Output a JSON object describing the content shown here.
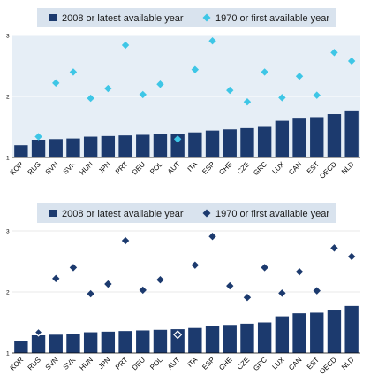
{
  "chart_data": [
    {
      "type": "bar",
      "title": "",
      "xlabel": "",
      "ylabel": "",
      "ylim": [
        1,
        3
      ],
      "yticks": [
        "1",
        "2",
        "3"
      ],
      "grid": true,
      "legend_position": "top",
      "categories": [
        "KOR",
        "RUS",
        "SVN",
        "SVK",
        "HUN",
        "JPN",
        "PRT",
        "DEU",
        "POL",
        "AUT",
        "ITA",
        "ESP",
        "CHE",
        "CZE",
        "GRC",
        "LUX",
        "CAN",
        "EST",
        "OECD",
        "NLD"
      ],
      "series": [
        {
          "name": "2008 or latest available year",
          "kind": "bar",
          "values": [
            1.2,
            1.29,
            1.3,
            1.31,
            1.34,
            1.35,
            1.36,
            1.37,
            1.38,
            1.39,
            1.41,
            1.44,
            1.46,
            1.48,
            1.5,
            1.6,
            1.65,
            1.66,
            1.71,
            1.77
          ]
        },
        {
          "name": "1970 or first available year",
          "kind": "marker",
          "values": [
            null,
            1.34,
            2.22,
            2.4,
            1.97,
            2.13,
            2.84,
            2.03,
            2.2,
            1.3,
            2.44,
            2.91,
            2.1,
            1.91,
            2.4,
            1.98,
            2.33,
            2.02,
            2.72,
            2.58
          ]
        }
      ],
      "colors": {
        "bar": "#1c3a6e",
        "marker": "#3ec6e6",
        "plot_bg": "#e6eef6",
        "grid": "#ffffff",
        "legend_bg": "#d9e3ee"
      }
    },
    {
      "type": "bar",
      "title": "",
      "xlabel": "",
      "ylabel": "",
      "ylim": [
        1,
        3
      ],
      "yticks": [
        "1",
        "2",
        "3"
      ],
      "grid": true,
      "legend_position": "top",
      "categories": [
        "KOR",
        "RUS",
        "SVN",
        "SVK",
        "HUN",
        "JPN",
        "PRT",
        "DEU",
        "POL",
        "AUT",
        "ITA",
        "ESP",
        "CHE",
        "CZE",
        "GRC",
        "LUX",
        "CAN",
        "EST",
        "OECD",
        "NLD"
      ],
      "series": [
        {
          "name": "2008 or latest available year",
          "kind": "bar",
          "values": [
            1.2,
            1.29,
            1.3,
            1.31,
            1.34,
            1.35,
            1.36,
            1.37,
            1.38,
            1.39,
            1.41,
            1.44,
            1.46,
            1.48,
            1.5,
            1.6,
            1.65,
            1.66,
            1.71,
            1.77
          ]
        },
        {
          "name": "1970 or first available year",
          "kind": "marker",
          "values": [
            null,
            1.34,
            2.22,
            2.4,
            1.97,
            2.13,
            2.84,
            2.03,
            2.2,
            1.3,
            2.44,
            2.91,
            2.1,
            1.91,
            2.4,
            1.98,
            2.33,
            2.02,
            2.72,
            2.58
          ]
        }
      ],
      "colors": {
        "bar": "#1c3a6e",
        "marker": "#1c3a6e",
        "plot_bg": "#ffffff",
        "grid": "#ffffff",
        "legend_bg": "#d9e3ee"
      }
    }
  ]
}
